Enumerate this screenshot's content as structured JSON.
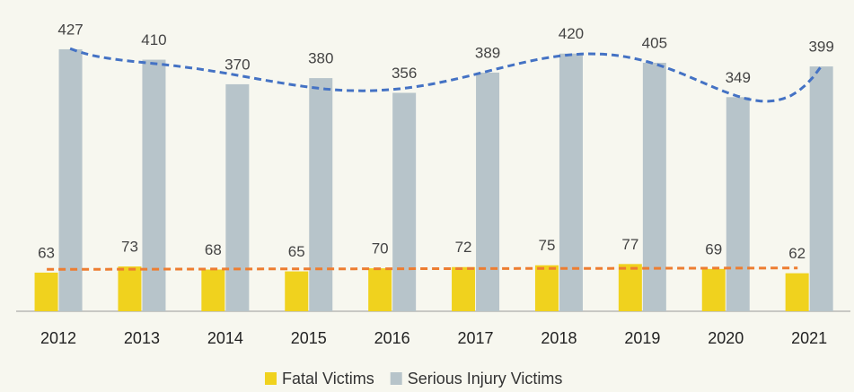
{
  "chart_data": {
    "type": "bar",
    "categories": [
      "2012",
      "2013",
      "2014",
      "2015",
      "2016",
      "2017",
      "2018",
      "2019",
      "2020",
      "2021"
    ],
    "series": [
      {
        "name": "Fatal Victims",
        "color": "#f0d21e",
        "values": [
          63,
          73,
          68,
          65,
          70,
          72,
          75,
          77,
          69,
          62
        ]
      },
      {
        "name": "Serious Injury Victims",
        "color": "#b7c4ca",
        "values": [
          427,
          410,
          370,
          380,
          356,
          389,
          420,
          405,
          349,
          399
        ]
      }
    ],
    "ylim": [
      0,
      500
    ]
  }
}
